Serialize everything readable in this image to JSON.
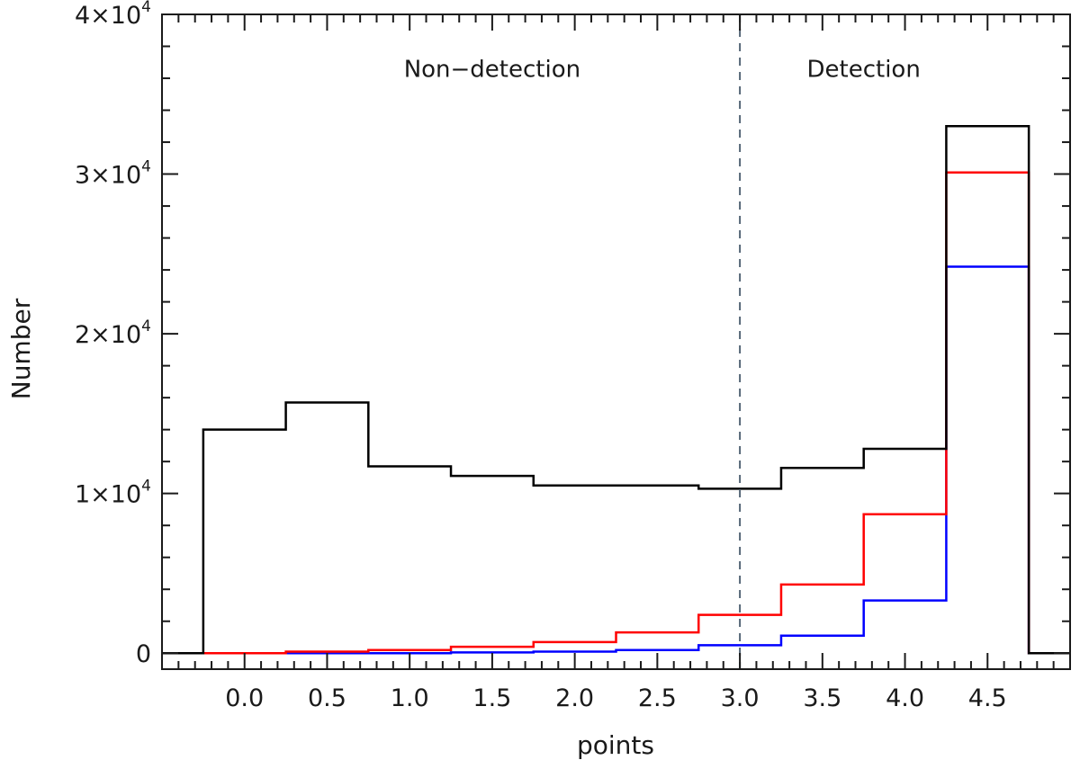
{
  "chart_data": {
    "type": "histogram",
    "xlabel": "points",
    "ylabel": "Number",
    "xlim": [
      -0.5,
      5.0
    ],
    "ylim": [
      -1000,
      40000
    ],
    "x_ticks": [
      {
        "value": 0.0,
        "label": "0.0"
      },
      {
        "value": 0.5,
        "label": "0.5"
      },
      {
        "value": 1.0,
        "label": "1.0"
      },
      {
        "value": 1.5,
        "label": "1.5"
      },
      {
        "value": 2.0,
        "label": "2.0"
      },
      {
        "value": 2.5,
        "label": "2.5"
      },
      {
        "value": 3.0,
        "label": "3.0"
      },
      {
        "value": 3.5,
        "label": "3.5"
      },
      {
        "value": 4.0,
        "label": "4.0"
      },
      {
        "value": 4.5,
        "label": "4.5"
      }
    ],
    "y_ticks": [
      {
        "value": 0,
        "mantissa": "0",
        "exponent": ""
      },
      {
        "value": 10000,
        "mantissa": "1×10",
        "exponent": "4"
      },
      {
        "value": 20000,
        "mantissa": "2×10",
        "exponent": "4"
      },
      {
        "value": 30000,
        "mantissa": "3×10",
        "exponent": "4"
      },
      {
        "value": 40000,
        "mantissa": "4×10",
        "exponent": "4"
      }
    ],
    "bin_edges": [
      -0.25,
      0.25,
      0.75,
      1.25,
      1.75,
      2.25,
      2.75,
      3.25,
      3.75,
      4.25,
      4.75
    ],
    "series": [
      {
        "color": "#000000",
        "values": [
          14000,
          15700,
          11700,
          11100,
          10500,
          10500,
          10300,
          11600,
          12800,
          33000
        ]
      },
      {
        "color": "#ff0000",
        "values": [
          0,
          100,
          200,
          400,
          700,
          1300,
          2400,
          4300,
          8700,
          30100
        ]
      },
      {
        "color": "#0000ff",
        "values": [
          0,
          0,
          0,
          50,
          100,
          200,
          500,
          1100,
          3300,
          24200
        ]
      }
    ],
    "threshold": {
      "x": 3.0,
      "style": "dashed",
      "color": "#556677"
    },
    "annotations": [
      {
        "text": "Non−detection",
        "x": 1.5,
        "y": 33000
      },
      {
        "text": "Detection",
        "x": 3.75,
        "y": 33000
      }
    ]
  }
}
